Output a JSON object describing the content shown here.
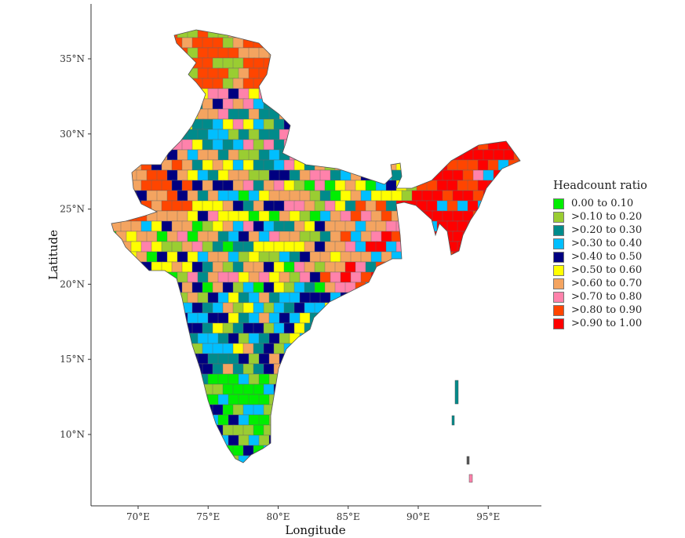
{
  "map": {
    "x_axis": {
      "title": "Longitude",
      "ticks": [
        "70°E",
        "75°E",
        "80°E",
        "85°E",
        "90°E",
        "95°E"
      ],
      "values": [
        70,
        75,
        80,
        85,
        90,
        95
      ]
    },
    "y_axis": {
      "title": "Latitude",
      "ticks": [
        "35°N",
        "30°N",
        "25°N",
        "20°N",
        "15°N",
        "10°N"
      ],
      "values": [
        35,
        30,
        25,
        20,
        15,
        10
      ]
    },
    "legend": {
      "title": "Headcount ratio",
      "items": [
        {
          "label": "0.00 to 0.10",
          "color": "#00ee00"
        },
        {
          "label": ">0.10 to 0.20",
          "color": "#9acd32"
        },
        {
          "label": ">0.20 to 0.30",
          "color": "#008b8b"
        },
        {
          "label": ">0.30 to 0.40",
          "color": "#00bfff"
        },
        {
          "label": ">0.40 to 0.50",
          "color": "#000080"
        },
        {
          "label": ">0.50 to 0.60",
          "color": "#ffff00"
        },
        {
          "label": ">0.60 to 0.70",
          "color": "#f4a460"
        },
        {
          "label": ">0.70 to 0.80",
          "color": "#ff82ab"
        },
        {
          "label": ">0.80 to 0.90",
          "color": "#ff4500"
        },
        {
          "label": ">0.90 to 1.00",
          "color": "#ff0000"
        }
      ]
    }
  }
}
